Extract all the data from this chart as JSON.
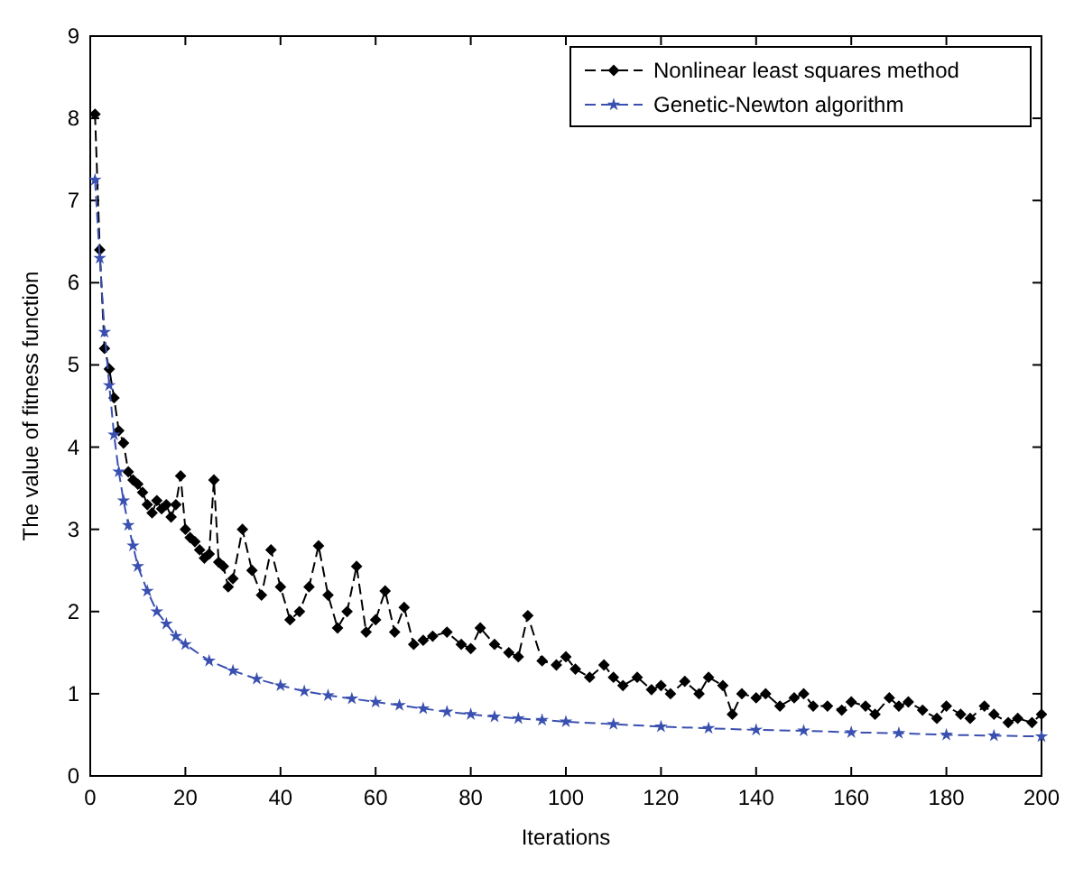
{
  "chart_data": {
    "type": "line",
    "xlabel": "Iterations",
    "ylabel": "The value of fitness function",
    "xlim": [
      0,
      200
    ],
    "ylim": [
      0,
      9
    ],
    "xticks": [
      0,
      20,
      40,
      60,
      80,
      100,
      120,
      140,
      160,
      180,
      200
    ],
    "yticks": [
      0,
      1,
      2,
      3,
      4,
      5,
      6,
      7,
      8,
      9
    ],
    "grid": false,
    "legend": "top right",
    "line_style": "dashed",
    "series": [
      {
        "name": "Nonlinear least squares method",
        "color": "#000000",
        "marker": "diamond",
        "x": [
          1,
          2,
          3,
          4,
          5,
          6,
          7,
          8,
          9,
          10,
          11,
          12,
          13,
          14,
          15,
          16,
          17,
          18,
          19,
          20,
          21,
          22,
          23,
          24,
          25,
          26,
          27,
          28,
          29,
          30,
          32,
          34,
          36,
          38,
          40,
          42,
          44,
          46,
          48,
          50,
          52,
          54,
          56,
          58,
          60,
          62,
          64,
          66,
          68,
          70,
          72,
          75,
          78,
          80,
          82,
          85,
          88,
          90,
          92,
          95,
          98,
          100,
          102,
          105,
          108,
          110,
          112,
          115,
          118,
          120,
          122,
          125,
          128,
          130,
          133,
          135,
          137,
          140,
          142,
          145,
          148,
          150,
          152,
          155,
          158,
          160,
          163,
          165,
          168,
          170,
          172,
          175,
          178,
          180,
          183,
          185,
          188,
          190,
          193,
          195,
          198,
          200
        ],
        "values": [
          8.05,
          6.4,
          5.2,
          4.95,
          4.6,
          4.2,
          4.05,
          3.7,
          3.6,
          3.55,
          3.45,
          3.3,
          3.2,
          3.35,
          3.25,
          3.3,
          3.15,
          3.3,
          3.65,
          3.0,
          2.9,
          2.85,
          2.75,
          2.65,
          2.7,
          3.6,
          2.6,
          2.55,
          2.3,
          2.4,
          3.0,
          2.5,
          2.2,
          2.75,
          2.3,
          1.9,
          2.0,
          2.3,
          2.8,
          2.2,
          1.8,
          2.0,
          2.55,
          1.75,
          1.9,
          2.25,
          1.75,
          2.05,
          1.6,
          1.65,
          1.7,
          1.75,
          1.6,
          1.55,
          1.8,
          1.6,
          1.5,
          1.45,
          1.95,
          1.4,
          1.35,
          1.45,
          1.3,
          1.2,
          1.35,
          1.2,
          1.1,
          1.2,
          1.05,
          1.1,
          1.0,
          1.15,
          1.0,
          1.2,
          1.1,
          0.75,
          1.0,
          0.95,
          1.0,
          0.85,
          0.95,
          1.0,
          0.85,
          0.85,
          0.8,
          0.9,
          0.85,
          0.75,
          0.95,
          0.85,
          0.9,
          0.8,
          0.7,
          0.85,
          0.75,
          0.7,
          0.85,
          0.75,
          0.65,
          0.7,
          0.65,
          0.75
        ]
      },
      {
        "name": "Genetic-Newton algorithm",
        "color": "#3a50b0",
        "marker": "star",
        "x": [
          1,
          2,
          3,
          4,
          5,
          6,
          7,
          8,
          9,
          10,
          12,
          14,
          16,
          18,
          20,
          25,
          30,
          35,
          40,
          45,
          50,
          55,
          60,
          65,
          70,
          75,
          80,
          85,
          90,
          95,
          100,
          110,
          120,
          130,
          140,
          150,
          160,
          170,
          180,
          190,
          200
        ],
        "values": [
          7.25,
          6.3,
          5.4,
          4.75,
          4.15,
          3.7,
          3.35,
          3.05,
          2.8,
          2.55,
          2.25,
          2.0,
          1.85,
          1.7,
          1.6,
          1.4,
          1.28,
          1.18,
          1.1,
          1.03,
          0.98,
          0.94,
          0.9,
          0.86,
          0.82,
          0.78,
          0.75,
          0.72,
          0.7,
          0.68,
          0.66,
          0.63,
          0.6,
          0.58,
          0.56,
          0.55,
          0.53,
          0.52,
          0.5,
          0.49,
          0.48
        ]
      }
    ]
  }
}
